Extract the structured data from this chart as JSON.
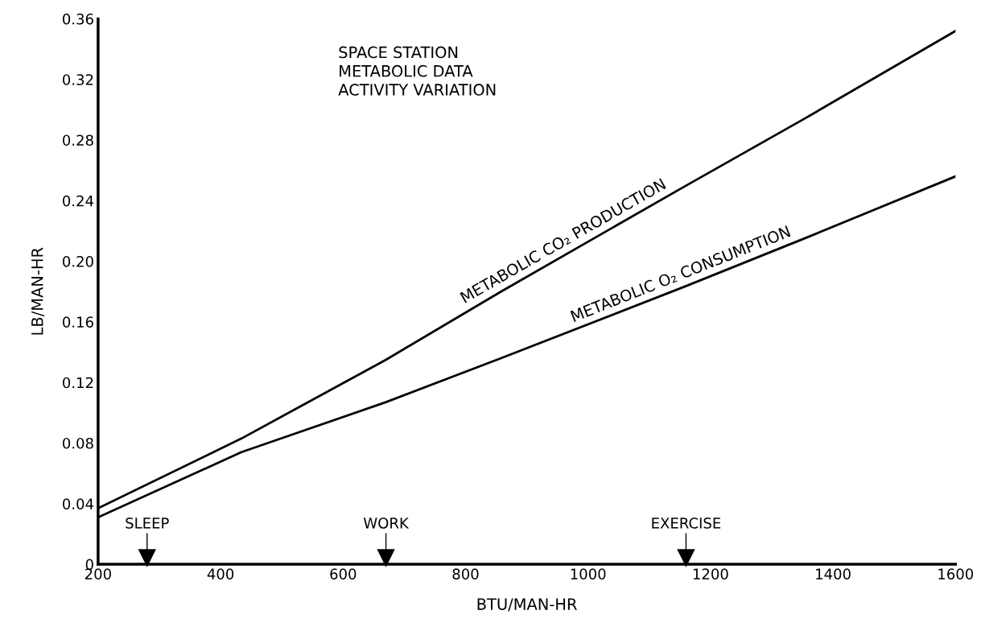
{
  "chart_data": {
    "type": "line",
    "title": "SPACE STATION\nMETABOLIC DATA\nACTIVITY VARIATION",
    "xlabel": "BTU/MAN-HR",
    "ylabel": "LB/MAN-HR",
    "x": [
      200,
      434,
      670,
      858,
      1156,
      1353,
      1600
    ],
    "series": [
      {
        "name": "METABOLIC CO₂ PRODUCTION",
        "color": "#000000",
        "values": [
          0.037,
          0.083,
          0.135,
          0.18,
          0.249,
          0.294,
          0.352
        ]
      },
      {
        "name": "METABOLIC O₂ CONSUMPTION",
        "color": "#000000",
        "values": [
          0.031,
          0.074,
          0.107,
          0.136,
          0.183,
          0.215,
          0.256
        ]
      },
      {
        "type": "scatter",
        "color": "#000000",
        "marker": "triangle",
        "x": [
          280,
          670,
          1160
        ],
        "values": [
          0.004,
          0.004,
          0.004
        ]
      }
    ],
    "xlim": [
      200,
      1600
    ],
    "xticks": [
      200,
      400,
      600,
      800,
      1000,
      1200,
      1400,
      1600
    ],
    "ylim": [
      0,
      0.36
    ],
    "yticks": [
      0,
      0.04,
      0.08,
      0.12,
      0.16,
      {
        "value": 0.2,
        "label": "0.20"
      },
      0.24,
      0.28,
      0.32,
      0.36
    ],
    "annotations": [
      {
        "text": "SLEEP",
        "x": 280,
        "y": 0.004
      },
      {
        "text": "WORK",
        "x": 670,
        "y": 0.004
      },
      {
        "text": "EXERCISE",
        "x": 1160,
        "y": 0.004
      }
    ],
    "grid": false,
    "legend": false,
    "marker": "none",
    "line_style": "solid"
  }
}
